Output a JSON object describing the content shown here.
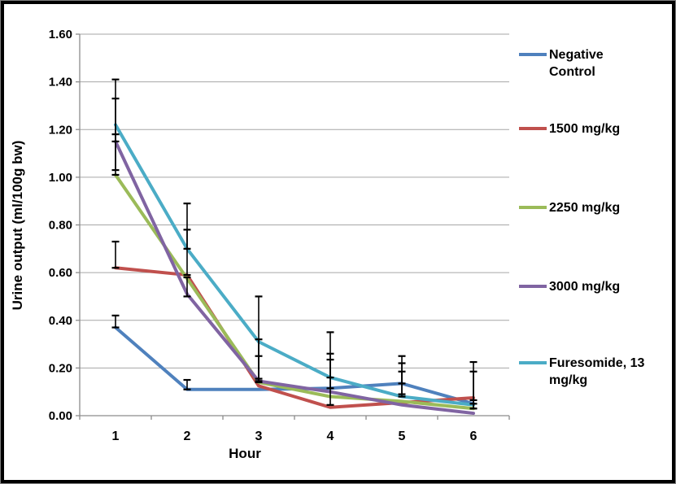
{
  "chart_data": {
    "type": "line",
    "x": [
      1,
      2,
      3,
      4,
      5,
      6
    ],
    "xlabel": "Hour",
    "ylabel": "Urine output (ml/100g bw)",
    "ylim": [
      0,
      1.6
    ],
    "ytick_step": 0.2,
    "ytick_labels": [
      "0.00",
      "0.20",
      "0.40",
      "0.60",
      "0.80",
      "1.00",
      "1.20",
      "1.40",
      "1.60"
    ],
    "xtick_labels": [
      "1",
      "2",
      "3",
      "4",
      "5",
      "6"
    ],
    "grid": true,
    "legend_position": "right",
    "series": [
      {
        "name": "Negative Control",
        "color": "#4F81BD",
        "values": [
          0.37,
          0.11,
          0.11,
          0.115,
          0.135,
          0.05
        ]
      },
      {
        "name": "1500 mg/kg",
        "color": "#C0504D",
        "values": [
          0.62,
          0.59,
          0.125,
          0.035,
          0.055,
          0.075
        ]
      },
      {
        "name": "2250 mg/kg",
        "color": "#9BBB59",
        "values": [
          1.01,
          0.575,
          0.14,
          0.08,
          0.06,
          0.03
        ]
      },
      {
        "name": "3000 mg/kg",
        "color": "#8064A2",
        "values": [
          1.15,
          0.51,
          0.145,
          0.1,
          0.045,
          0.01
        ]
      },
      {
        "name": "Furesomide, 13 mg/kg",
        "color": "#4BACC6",
        "values": [
          1.22,
          0.7,
          0.31,
          0.16,
          0.08,
          0.045
        ]
      }
    ],
    "error_bars": [
      {
        "x": 1,
        "top": 1.41,
        "bottom": 1.03
      },
      {
        "x": 1,
        "top": 1.33,
        "bottom": 1.15
      },
      {
        "x": 1,
        "top": 1.18,
        "bottom": 1.01
      },
      {
        "x": 1,
        "top": 0.73,
        "bottom": 0.62
      },
      {
        "x": 1,
        "top": 0.42,
        "bottom": 0.37
      },
      {
        "x": 2,
        "top": 0.89,
        "bottom": 0.7
      },
      {
        "x": 2,
        "top": 0.78,
        "bottom": 0.59
      },
      {
        "x": 2,
        "top": 0.58,
        "bottom": 0.5
      },
      {
        "x": 2,
        "top": 0.15,
        "bottom": 0.11
      },
      {
        "x": 3,
        "top": 0.5,
        "bottom": 0.155
      },
      {
        "x": 3,
        "top": 0.32,
        "bottom": 0.145
      },
      {
        "x": 3,
        "top": 0.25,
        "bottom": 0.14
      },
      {
        "x": 4,
        "top": 0.35,
        "bottom": 0.045
      },
      {
        "x": 4,
        "top": 0.26,
        "bottom": 0.16
      },
      {
        "x": 4,
        "top": 0.235,
        "bottom": 0.115
      },
      {
        "x": 5,
        "top": 0.25,
        "bottom": 0.09
      },
      {
        "x": 5,
        "top": 0.22,
        "bottom": 0.135
      },
      {
        "x": 5,
        "top": 0.185,
        "bottom": 0.08
      },
      {
        "x": 6,
        "top": 0.225,
        "bottom": 0.03
      },
      {
        "x": 6,
        "top": 0.185,
        "bottom": 0.05
      },
      {
        "x": 6,
        "top": 0.065,
        "bottom": 0.03
      }
    ]
  },
  "colors": {
    "gridline": "#A6A6A6",
    "axis_line": "#8C8C8C",
    "error_bar": "#000000",
    "text": "#000000",
    "frame_outer": "#7F7F7F",
    "frame_inner": "#000000",
    "background": "#FFFFFF"
  }
}
